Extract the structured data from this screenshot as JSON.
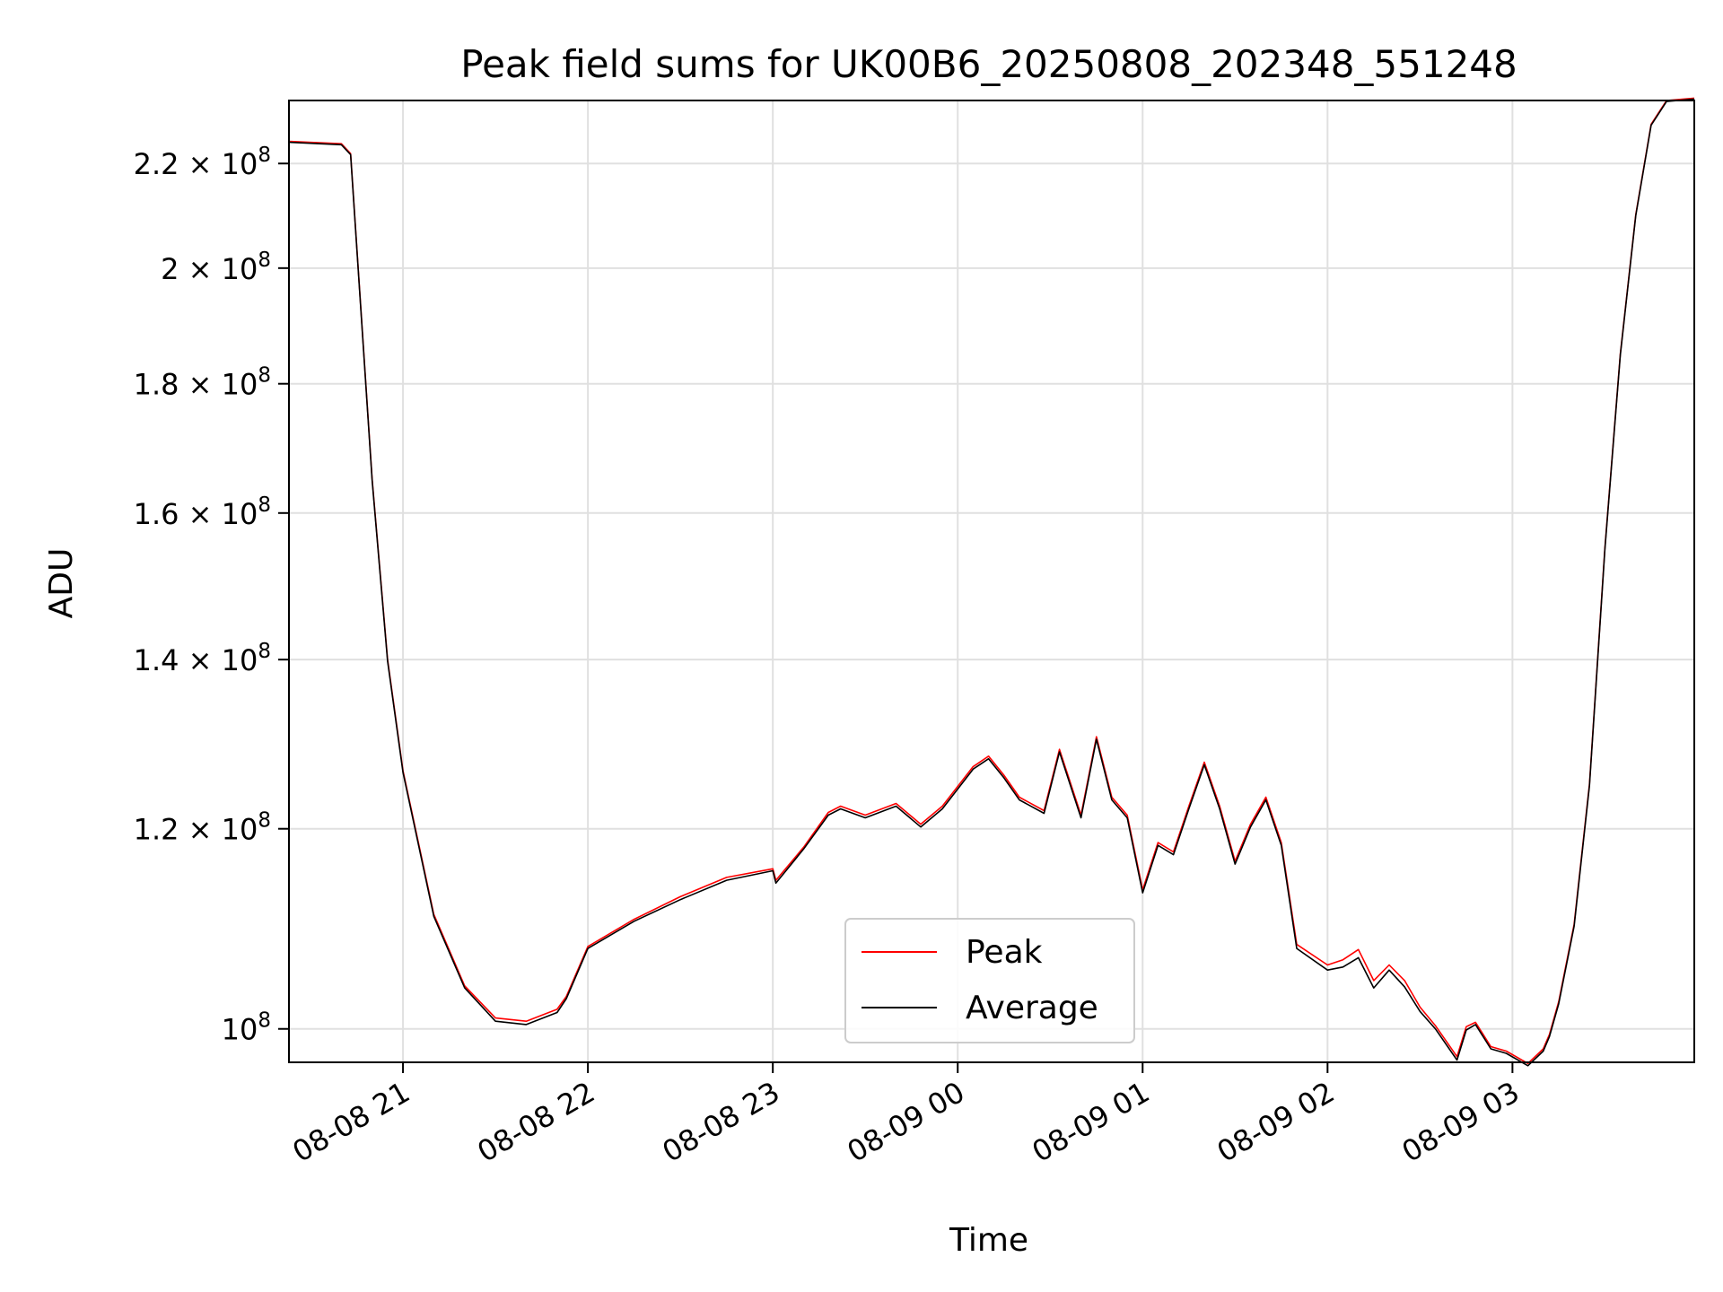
{
  "chart_data": {
    "type": "line",
    "title": "Peak field sums for UK00B6_20250808_202348_551248",
    "xlabel": "Time",
    "ylabel": "ADU",
    "y_scale": "log",
    "grid": true,
    "legend_position": "lower-center",
    "xlim": [
      "2025-08-08 20:23",
      "2025-08-09 03:59"
    ],
    "ylim": [
      97000000,
      233000000
    ],
    "x_ticks": [
      "08-08 21",
      "08-08 22",
      "08-08 23",
      "08-09 00",
      "08-09 01",
      "08-09 02",
      "08-09 03"
    ],
    "y_ticks": [
      {
        "value": 100000000,
        "mant": "",
        "exp": "8"
      },
      {
        "value": 120000000,
        "mant": "1.2",
        "exp": "8"
      },
      {
        "value": 140000000,
        "mant": "1.4",
        "exp": "8"
      },
      {
        "value": 160000000,
        "mant": "1.6",
        "exp": "8"
      },
      {
        "value": 180000000,
        "mant": "1.8",
        "exp": "8"
      },
      {
        "value": 200000000,
        "mant": "2",
        "exp": "8"
      },
      {
        "value": 220000000,
        "mant": "2.2",
        "exp": "8"
      }
    ],
    "series": [
      {
        "name": "Peak",
        "color": "#ff0000",
        "x": [
          "2025-08-08 20:23",
          "2025-08-08 20:40",
          "2025-08-08 20:43",
          "2025-08-08 20:50",
          "2025-08-08 20:55",
          "2025-08-08 21:00",
          "2025-08-08 21:10",
          "2025-08-08 21:20",
          "2025-08-08 21:30",
          "2025-08-08 21:40",
          "2025-08-08 21:50",
          "2025-08-08 21:53",
          "2025-08-08 22:00",
          "2025-08-08 22:15",
          "2025-08-08 22:30",
          "2025-08-08 22:45",
          "2025-08-08 23:00",
          "2025-08-08 23:01",
          "2025-08-08 23:10",
          "2025-08-08 23:18",
          "2025-08-08 23:22",
          "2025-08-08 23:30",
          "2025-08-08 23:40",
          "2025-08-08 23:48",
          "2025-08-08 23:55",
          "2025-08-09 00:05",
          "2025-08-09 00:10",
          "2025-08-09 00:15",
          "2025-08-09 00:20",
          "2025-08-09 00:28",
          "2025-08-09 00:33",
          "2025-08-09 00:40",
          "2025-08-09 00:45",
          "2025-08-09 00:50",
          "2025-08-09 00:55",
          "2025-08-09 01:00",
          "2025-08-09 01:05",
          "2025-08-09 01:10",
          "2025-08-09 01:15",
          "2025-08-09 01:20",
          "2025-08-09 01:25",
          "2025-08-09 01:30",
          "2025-08-09 01:35",
          "2025-08-09 01:40",
          "2025-08-09 01:45",
          "2025-08-09 01:50",
          "2025-08-09 02:00",
          "2025-08-09 02:05",
          "2025-08-09 02:10",
          "2025-08-09 02:15",
          "2025-08-09 02:20",
          "2025-08-09 02:25",
          "2025-08-09 02:30",
          "2025-08-09 02:35",
          "2025-08-09 02:42",
          "2025-08-09 02:45",
          "2025-08-09 02:48",
          "2025-08-09 02:53",
          "2025-08-09 02:58",
          "2025-08-09 03:05",
          "2025-08-09 03:10",
          "2025-08-09 03:12",
          "2025-08-09 03:15",
          "2025-08-09 03:20",
          "2025-08-09 03:25",
          "2025-08-09 03:30",
          "2025-08-09 03:35",
          "2025-08-09 03:40",
          "2025-08-09 03:45",
          "2025-08-09 03:50",
          "2025-08-09 03:59"
        ],
        "values": [
          224500000,
          224000000,
          222000000,
          165000000,
          140000000,
          126500000,
          111000000,
          104000000,
          101000000,
          100700000,
          101800000,
          103000000,
          107800000,
          110500000,
          112800000,
          114800000,
          115700000,
          114500000,
          118000000,
          121800000,
          122500000,
          121500000,
          122800000,
          120500000,
          122500000,
          127000000,
          128200000,
          126000000,
          123500000,
          122000000,
          129000000,
          121500000,
          130500000,
          123500000,
          121500000,
          113500000,
          118500000,
          117500000,
          122500000,
          127500000,
          122500000,
          116500000,
          120500000,
          123500000,
          118500000,
          108000000,
          106000000,
          106500000,
          107500000,
          104500000,
          106000000,
          104500000,
          102000000,
          100300000,
          97500000,
          100200000,
          100600000,
          98400000,
          98000000,
          96900000,
          98200000,
          99500000,
          102500000,
          110000000,
          125000000,
          155000000,
          185000000,
          210000000,
          228000000,
          233000000,
          233500000
        ]
      },
      {
        "name": "Average",
        "color": "#000000",
        "x": [
          "2025-08-08 20:23",
          "2025-08-08 20:40",
          "2025-08-08 20:43",
          "2025-08-08 20:50",
          "2025-08-08 20:55",
          "2025-08-08 21:00",
          "2025-08-08 21:10",
          "2025-08-08 21:20",
          "2025-08-08 21:30",
          "2025-08-08 21:40",
          "2025-08-08 21:50",
          "2025-08-08 21:53",
          "2025-08-08 22:00",
          "2025-08-08 22:15",
          "2025-08-08 22:30",
          "2025-08-08 22:45",
          "2025-08-08 23:00",
          "2025-08-08 23:01",
          "2025-08-08 23:10",
          "2025-08-08 23:18",
          "2025-08-08 23:22",
          "2025-08-08 23:30",
          "2025-08-08 23:40",
          "2025-08-08 23:48",
          "2025-08-08 23:55",
          "2025-08-09 00:05",
          "2025-08-09 00:10",
          "2025-08-09 00:15",
          "2025-08-09 00:20",
          "2025-08-09 00:28",
          "2025-08-09 00:33",
          "2025-08-09 00:40",
          "2025-08-09 00:45",
          "2025-08-09 00:50",
          "2025-08-09 00:55",
          "2025-08-09 01:00",
          "2025-08-09 01:05",
          "2025-08-09 01:10",
          "2025-08-09 01:15",
          "2025-08-09 01:20",
          "2025-08-09 01:25",
          "2025-08-09 01:30",
          "2025-08-09 01:35",
          "2025-08-09 01:40",
          "2025-08-09 01:45",
          "2025-08-09 01:50",
          "2025-08-09 02:00",
          "2025-08-09 02:05",
          "2025-08-09 02:10",
          "2025-08-09 02:15",
          "2025-08-09 02:20",
          "2025-08-09 02:25",
          "2025-08-09 02:30",
          "2025-08-09 02:35",
          "2025-08-09 02:42",
          "2025-08-09 02:45",
          "2025-08-09 02:48",
          "2025-08-09 02:53",
          "2025-08-09 02:58",
          "2025-08-09 03:05",
          "2025-08-09 03:10",
          "2025-08-09 03:12",
          "2025-08-09 03:15",
          "2025-08-09 03:20",
          "2025-08-09 03:25",
          "2025-08-09 03:30",
          "2025-08-09 03:35",
          "2025-08-09 03:40",
          "2025-08-09 03:45",
          "2025-08-09 03:50",
          "2025-08-09 03:59"
        ],
        "values": [
          224300000,
          223800000,
          221800000,
          164800000,
          139800000,
          126300000,
          110800000,
          103800000,
          100700000,
          100400000,
          101500000,
          102800000,
          107600000,
          110300000,
          112500000,
          114500000,
          115500000,
          114200000,
          117800000,
          121500000,
          122200000,
          121200000,
          122500000,
          120200000,
          122200000,
          126700000,
          127900000,
          125700000,
          123200000,
          121700000,
          128700000,
          121200000,
          130200000,
          123200000,
          121200000,
          113200000,
          118200000,
          117200000,
          122200000,
          127200000,
          122200000,
          116200000,
          120200000,
          123200000,
          118200000,
          107600000,
          105500000,
          105800000,
          106700000,
          103800000,
          105500000,
          103900000,
          101600000,
          100000000,
          97200000,
          99900000,
          100400000,
          98200000,
          97800000,
          96700000,
          98000000,
          99300000,
          102300000,
          109800000,
          124800000,
          154800000,
          184800000,
          209800000,
          227800000,
          232800000,
          233300000
        ]
      }
    ]
  }
}
